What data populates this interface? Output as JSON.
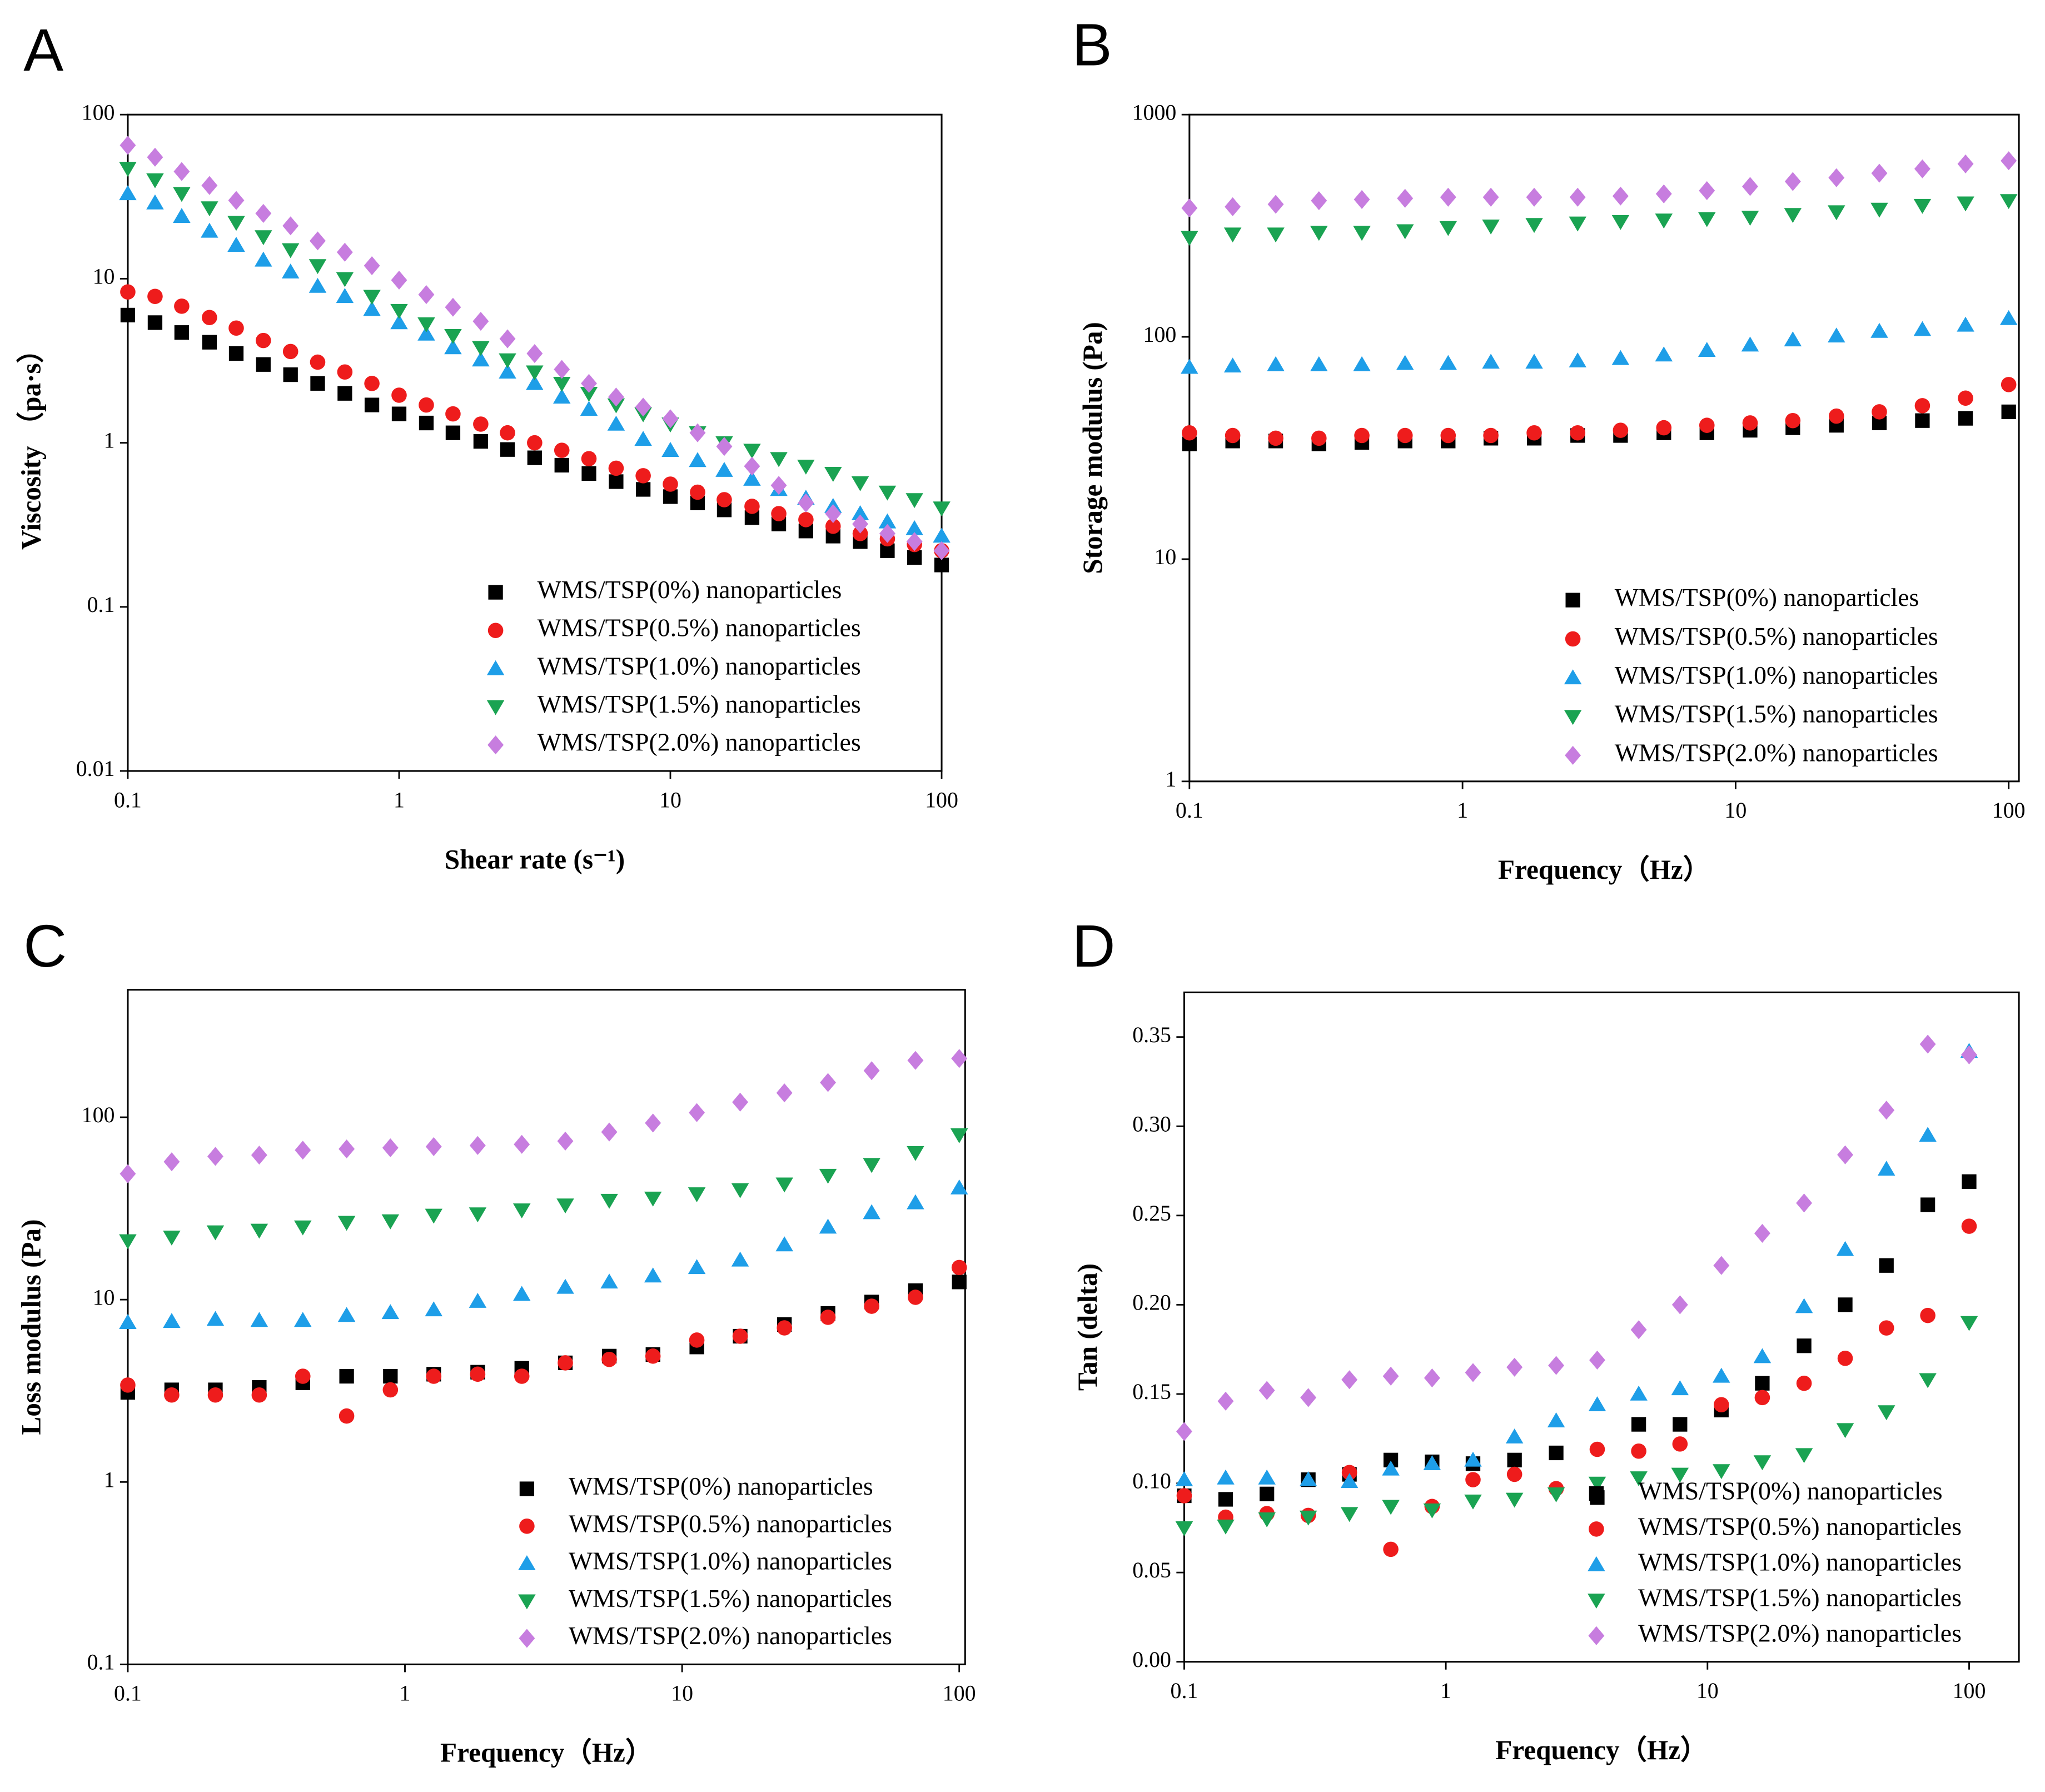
{
  "chart_data": [
    {
      "type": "scatter",
      "panel": "A",
      "x_label": "Shear rate (s⁻¹)",
      "y_label": "Viscosity （pa·s）",
      "xlog": true,
      "ylog": true,
      "xlim": [
        0.1,
        100
      ],
      "ylim": [
        0.01,
        100
      ],
      "xticks": [
        0.1,
        1,
        10,
        100
      ],
      "yticks": [
        0.01,
        0.1,
        1,
        10,
        100
      ],
      "legend": "lower right",
      "x": [
        0.1,
        0.126,
        0.158,
        0.2,
        0.251,
        0.316,
        0.398,
        0.501,
        0.631,
        0.794,
        1,
        1.26,
        1.58,
        2,
        2.51,
        3.16,
        3.98,
        5.01,
        6.31,
        7.94,
        10,
        12.6,
        15.8,
        20,
        25.1,
        31.6,
        39.8,
        50.1,
        63.1,
        79.4,
        100
      ],
      "series": [
        {
          "name": "WMS/TSP(0%) nanoparticles",
          "color": "#000000",
          "marker": "square",
          "values": [
            6.0,
            5.4,
            4.7,
            4.1,
            3.5,
            3.0,
            2.6,
            2.3,
            2.0,
            1.7,
            1.5,
            1.32,
            1.15,
            1.02,
            0.91,
            0.81,
            0.73,
            0.65,
            0.58,
            0.52,
            0.47,
            0.43,
            0.39,
            0.35,
            0.32,
            0.29,
            0.27,
            0.25,
            0.22,
            0.2,
            0.18
          ]
        },
        {
          "name": "WMS/TSP(0.5%) nanoparticles",
          "color": "#ee1c1c",
          "marker": "circle",
          "values": [
            8.3,
            7.8,
            6.8,
            5.8,
            5.0,
            4.2,
            3.6,
            3.1,
            2.7,
            2.3,
            1.95,
            1.7,
            1.5,
            1.3,
            1.15,
            1.0,
            0.9,
            0.8,
            0.7,
            0.63,
            0.56,
            0.5,
            0.45,
            0.41,
            0.37,
            0.34,
            0.31,
            0.28,
            0.26,
            0.24,
            0.22
          ]
        },
        {
          "name": "WMS/TSP(1.0%) nanoparticles",
          "color": "#1e9ee8",
          "marker": "triangle-up",
          "values": [
            33,
            29,
            24,
            19.5,
            16,
            13,
            11,
            9,
            7.8,
            6.5,
            5.4,
            4.6,
            3.8,
            3.2,
            2.7,
            2.3,
            1.9,
            1.6,
            1.3,
            1.05,
            0.9,
            0.78,
            0.68,
            0.6,
            0.52,
            0.46,
            0.41,
            0.37,
            0.33,
            0.3,
            0.27
          ]
        },
        {
          "name": "WMS/TSP(1.5%) nanoparticles",
          "color": "#1aa352",
          "marker": "triangle-down",
          "values": [
            47,
            40,
            33,
            27,
            22,
            18,
            15,
            12,
            10,
            7.8,
            6.4,
            5.3,
            4.5,
            3.8,
            3.2,
            2.7,
            2.3,
            2.0,
            1.7,
            1.5,
            1.3,
            1.15,
            1.0,
            0.9,
            0.8,
            0.72,
            0.65,
            0.57,
            0.5,
            0.45,
            0.4
          ]
        },
        {
          "name": "WMS/TSP(2.0%) nanoparticles",
          "color": "#c77ddf",
          "marker": "diamond",
          "values": [
            65,
            55,
            45,
            37,
            30,
            25,
            21,
            17,
            14.5,
            12,
            9.8,
            8,
            6.7,
            5.5,
            4.3,
            3.5,
            2.8,
            2.3,
            1.9,
            1.65,
            1.4,
            1.15,
            0.95,
            0.72,
            0.55,
            0.43,
            0.37,
            0.32,
            0.28,
            0.25,
            0.22
          ]
        }
      ]
    },
    {
      "type": "scatter",
      "panel": "B",
      "x_label": "Frequency（Hz）",
      "y_label": "Storage modulus (Pa)",
      "xlog": true,
      "ylog": true,
      "xlim": [
        0.1,
        109
      ],
      "ylim": [
        1,
        1000
      ],
      "xticks": [
        0.1,
        1,
        10,
        100
      ],
      "yticks": [
        1,
        10,
        100,
        1000
      ],
      "legend": "lower right",
      "x": [
        0.1,
        0.144,
        0.207,
        0.298,
        0.428,
        0.616,
        0.886,
        1.27,
        1.83,
        2.64,
        3.79,
        5.46,
        7.85,
        11.3,
        16.2,
        23.4,
        33.6,
        48.3,
        69.5,
        100
      ],
      "series": [
        {
          "name": "WMS/TSP(0%) nanoparticles",
          "color": "#000000",
          "marker": "square",
          "values": [
            33,
            34,
            34,
            33,
            33.5,
            34,
            34,
            35,
            35,
            36,
            36,
            37,
            37,
            38,
            39,
            40,
            41,
            42,
            43,
            46
          ]
        },
        {
          "name": "WMS/TSP(0.5%) nanoparticles",
          "color": "#ee1c1c",
          "marker": "circle",
          "values": [
            37,
            36,
            35,
            35,
            36,
            36,
            36,
            36,
            37,
            37,
            38,
            39,
            40,
            41,
            42,
            44,
            46,
            49,
            53,
            61
          ]
        },
        {
          "name": "WMS/TSP(1.0%) nanoparticles",
          "color": "#1e9ee8",
          "marker": "triangle-up",
          "values": [
            73,
            74,
            75,
            75,
            75,
            76,
            76,
            77,
            77,
            78,
            80,
            83,
            87,
            92,
            97,
            101,
            106,
            108,
            113,
            121
          ]
        },
        {
          "name": "WMS/TSP(1.5%) nanoparticles",
          "color": "#1aa352",
          "marker": "triangle-down",
          "values": [
            280,
            290,
            290,
            295,
            295,
            300,
            310,
            315,
            320,
            325,
            330,
            335,
            340,
            345,
            355,
            365,
            375,
            390,
            400,
            410
          ]
        },
        {
          "name": "WMS/TSP(2.0%) nanoparticles",
          "color": "#c77ddf",
          "marker": "diamond",
          "values": [
            380,
            385,
            395,
            410,
            415,
            420,
            425,
            425,
            425,
            425,
            430,
            440,
            455,
            475,
            500,
            520,
            545,
            570,
            600,
            620
          ]
        }
      ]
    },
    {
      "type": "scatter",
      "panel": "C",
      "x_label": "Frequency（Hz）",
      "y_label": "Loss modulus (Pa)",
      "xlog": true,
      "ylog": true,
      "xlim": [
        0.1,
        105
      ],
      "ylim": [
        0.1,
        500
      ],
      "xticks": [
        0.1,
        1,
        10,
        100
      ],
      "yticks": [
        0.1,
        1,
        10,
        100
      ],
      "legend": "lower right",
      "x": [
        0.1,
        0.144,
        0.207,
        0.298,
        0.428,
        0.616,
        0.886,
        1.27,
        1.83,
        2.64,
        3.79,
        5.46,
        7.85,
        11.3,
        16.2,
        23.4,
        33.6,
        48.3,
        69.5,
        100
      ],
      "series": [
        {
          "name": "WMS/TSP(0%) nanoparticles",
          "color": "#000000",
          "marker": "square",
          "values": [
            3.1,
            3.2,
            3.2,
            3.3,
            3.5,
            3.8,
            3.8,
            3.9,
            4.0,
            4.2,
            4.5,
            4.9,
            5.0,
            5.5,
            6.3,
            7.3,
            8.4,
            9.7,
            11.2,
            12.5
          ]
        },
        {
          "name": "WMS/TSP(0.5%) nanoparticles",
          "color": "#ee1c1c",
          "marker": "circle",
          "values": [
            3.4,
            3.0,
            3.0,
            3.0,
            3.8,
            2.3,
            3.2,
            3.8,
            3.9,
            3.8,
            4.5,
            4.7,
            4.9,
            6.0,
            6.3,
            7.0,
            8.0,
            9.2,
            10.3,
            15
          ]
        },
        {
          "name": "WMS/TSP(1.0%) nanoparticles",
          "color": "#1e9ee8",
          "marker": "triangle-up",
          "values": [
            7.5,
            7.6,
            7.8,
            7.7,
            7.7,
            8.2,
            8.5,
            8.8,
            9.8,
            10.7,
            11.7,
            12.5,
            13.5,
            15,
            16.5,
            20,
            25,
            30,
            34,
            41
          ]
        },
        {
          "name": "WMS/TSP(1.5%) nanoparticles",
          "color": "#1aa352",
          "marker": "triangle-down",
          "values": [
            21,
            22,
            23.5,
            24,
            25,
            26.5,
            27,
            29,
            29.5,
            31,
            33,
            35,
            36,
            38,
            40,
            43,
            48,
            55,
            64,
            80
          ]
        },
        {
          "name": "WMS/TSP(2.0%) nanoparticles",
          "color": "#c77ddf",
          "marker": "diamond",
          "values": [
            49,
            57,
            61,
            62,
            66,
            67,
            68,
            69,
            70,
            71,
            74,
            83,
            93,
            106,
            121,
            136,
            155,
            180,
            205,
            210
          ]
        }
      ]
    },
    {
      "type": "scatter",
      "panel": "D",
      "x_label": "Frequency（Hz）",
      "y_label": "Tan (delta)",
      "xlog": true,
      "ylog": false,
      "xlim": [
        0.1,
        155
      ],
      "ylim": [
        0,
        0.375
      ],
      "xticks": [
        0.1,
        1,
        10,
        100
      ],
      "yticks": [
        {
          "value": 0,
          "label": "0.00"
        },
        0.05,
        {
          "value": 0.1,
          "label": "0.10"
        },
        0.15,
        {
          "value": 0.2,
          "label": "0.20"
        },
        0.25,
        {
          "value": 0.3,
          "label": "0.30"
        },
        0.35
      ],
      "legend": "lower right",
      "x": [
        0.1,
        0.144,
        0.207,
        0.298,
        0.428,
        0.616,
        0.886,
        1.27,
        1.83,
        2.64,
        3.79,
        5.46,
        7.85,
        11.3,
        16.2,
        23.4,
        33.6,
        48.3,
        69.5,
        100
      ],
      "series": [
        {
          "name": "WMS/TSP(0%) nanoparticles",
          "color": "#000000",
          "marker": "square",
          "values": [
            0.093,
            0.091,
            0.094,
            0.102,
            0.105,
            0.113,
            0.112,
            0.111,
            0.113,
            0.117,
            0.092,
            0.133,
            0.133,
            0.141,
            0.156,
            0.177,
            0.2,
            0.222,
            0.256,
            0.269
          ]
        },
        {
          "name": "WMS/TSP(0.5%) nanoparticles",
          "color": "#ee1c1c",
          "marker": "circle",
          "values": [
            0.093,
            0.081,
            0.083,
            0.082,
            0.106,
            0.063,
            0.087,
            0.102,
            0.105,
            0.097,
            0.119,
            0.118,
            0.122,
            0.144,
            0.148,
            0.156,
            0.17,
            0.187,
            0.194,
            0.244
          ]
        },
        {
          "name": "WMS/TSP(1.0%) nanoparticles",
          "color": "#1e9ee8",
          "marker": "triangle-up",
          "values": [
            0.102,
            0.103,
            0.103,
            0.102,
            0.101,
            0.108,
            0.111,
            0.113,
            0.126,
            0.135,
            0.144,
            0.15,
            0.153,
            0.16,
            0.171,
            0.199,
            0.231,
            0.276,
            0.295,
            0.342
          ]
        },
        {
          "name": "WMS/TSP(1.5%) nanoparticles",
          "color": "#1aa352",
          "marker": "triangle-down",
          "values": [
            0.075,
            0.076,
            0.08,
            0.081,
            0.083,
            0.087,
            0.085,
            0.09,
            0.091,
            0.094,
            0.1,
            0.103,
            0.105,
            0.107,
            0.112,
            0.116,
            0.13,
            0.14,
            0.158,
            0.19
          ]
        },
        {
          "name": "WMS/TSP(2.0%) nanoparticles",
          "color": "#c77ddf",
          "marker": "diamond",
          "values": [
            0.129,
            0.146,
            0.152,
            0.148,
            0.158,
            0.16,
            0.159,
            0.162,
            0.165,
            0.166,
            0.169,
            0.186,
            0.2,
            0.222,
            0.24,
            0.257,
            0.284,
            0.309,
            0.346,
            0.34
          ]
        }
      ]
    }
  ]
}
